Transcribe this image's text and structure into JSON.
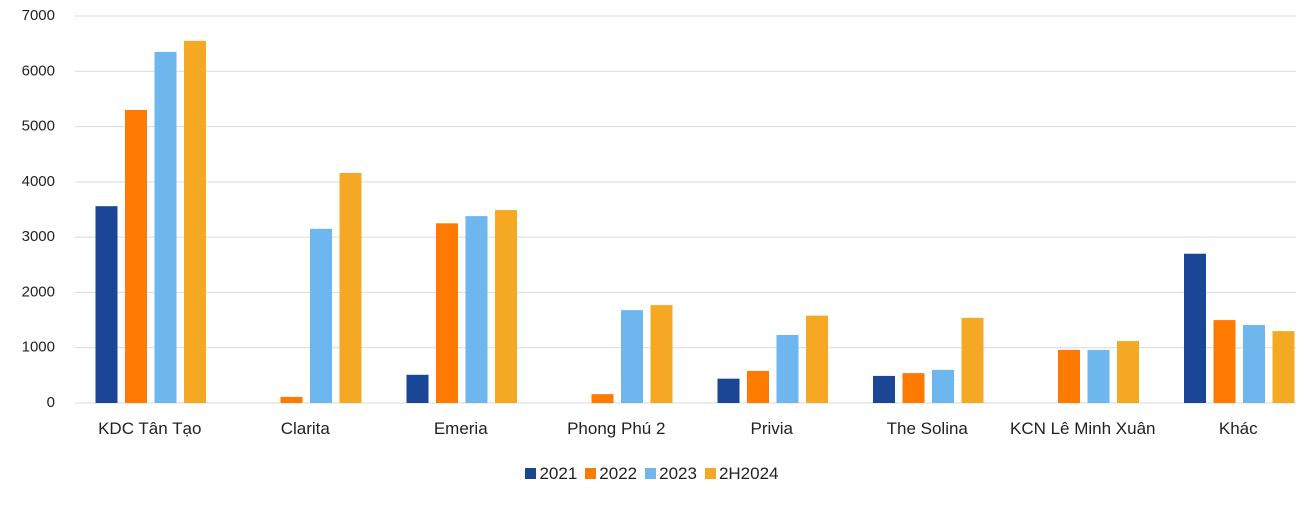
{
  "chart_data": {
    "type": "bar",
    "categories": [
      "KDC Tân Tạo",
      "Clarita",
      "Emeria",
      "Phong Phú 2",
      "Privia",
      "The Solina",
      "KCN Lê Minh Xuân",
      "Khác"
    ],
    "series": [
      {
        "name": "2021",
        "color": "#1b4696",
        "values": [
          3560,
          0,
          510,
          0,
          440,
          490,
          0,
          2700
        ]
      },
      {
        "name": "2022",
        "color": "#ff7a00",
        "values": [
          5300,
          110,
          3250,
          160,
          580,
          540,
          960,
          1500
        ]
      },
      {
        "name": "2023",
        "color": "#6db6ee",
        "values": [
          6350,
          3150,
          3380,
          1680,
          1230,
          600,
          960,
          1410
        ]
      },
      {
        "name": "2H2024",
        "color": "#f4a823",
        "values": [
          6550,
          4160,
          3490,
          1770,
          1580,
          1540,
          1120,
          1300
        ]
      }
    ],
    "ylim": [
      0,
      7000
    ],
    "yticks": [
      0,
      1000,
      2000,
      3000,
      4000,
      5000,
      6000,
      7000
    ],
    "grid": true,
    "legend": "bottom"
  }
}
